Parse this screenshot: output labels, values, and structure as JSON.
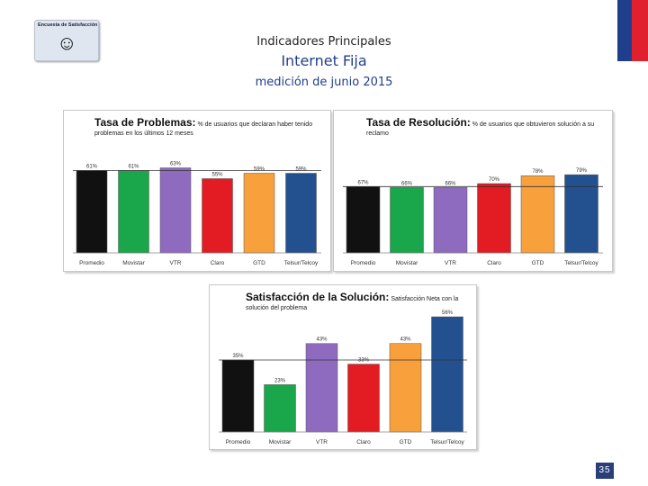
{
  "header": {
    "logo_text": "Encuesta de Satisfacción",
    "title": "Indicadores Principales",
    "subtitle": "Internet Fija",
    "period": "medición de junio 2015"
  },
  "page_number": "35",
  "colors": [
    "#111111",
    "#1aa64a",
    "#8e6bbf",
    "#e31b23",
    "#f7a03c",
    "#23508f"
  ],
  "chart_data": [
    {
      "type": "bar",
      "title": "Tasa de Problemas:",
      "subtitle": "% de usuarios que declaran haber tenido problemas en los últimos 12 meses",
      "categories": [
        "Promedio",
        "Movistar",
        "VTR",
        "Claro",
        "GTD",
        "Telsur/Telcoy"
      ],
      "values": [
        61,
        61,
        63,
        55,
        59,
        59
      ],
      "labels": [
        "61%",
        "61%",
        "63%",
        "55%",
        "59%",
        "59%"
      ],
      "ylim": [
        0,
        100
      ]
    },
    {
      "type": "bar",
      "title": "Tasa de Resolución:",
      "subtitle": "% de usuarios que obtuvieron solución a su reclamo",
      "categories": [
        "Promedio",
        "Movistar",
        "VTR",
        "Claro",
        "GTD",
        "Telsur/Telcoy"
      ],
      "values": [
        67,
        66,
        66,
        70,
        78,
        79
      ],
      "labels": [
        "67%",
        "66%",
        "66%",
        "70%",
        "78%",
        "79%"
      ],
      "ylim": [
        0,
        100
      ]
    },
    {
      "type": "bar",
      "title": "Satisfacción de la Solución:",
      "subtitle": "Satisfacción Neta con la solución del problema",
      "categories": [
        "Promedio",
        "Movistar",
        "VTR",
        "Claro",
        "GTD",
        "Telsur/Telcoy"
      ],
      "values": [
        35,
        23,
        43,
        33,
        43,
        56
      ],
      "labels": [
        "35%",
        "23%",
        "43%",
        "33%",
        "43%",
        "56%"
      ],
      "ylim": [
        0,
        70
      ]
    }
  ]
}
